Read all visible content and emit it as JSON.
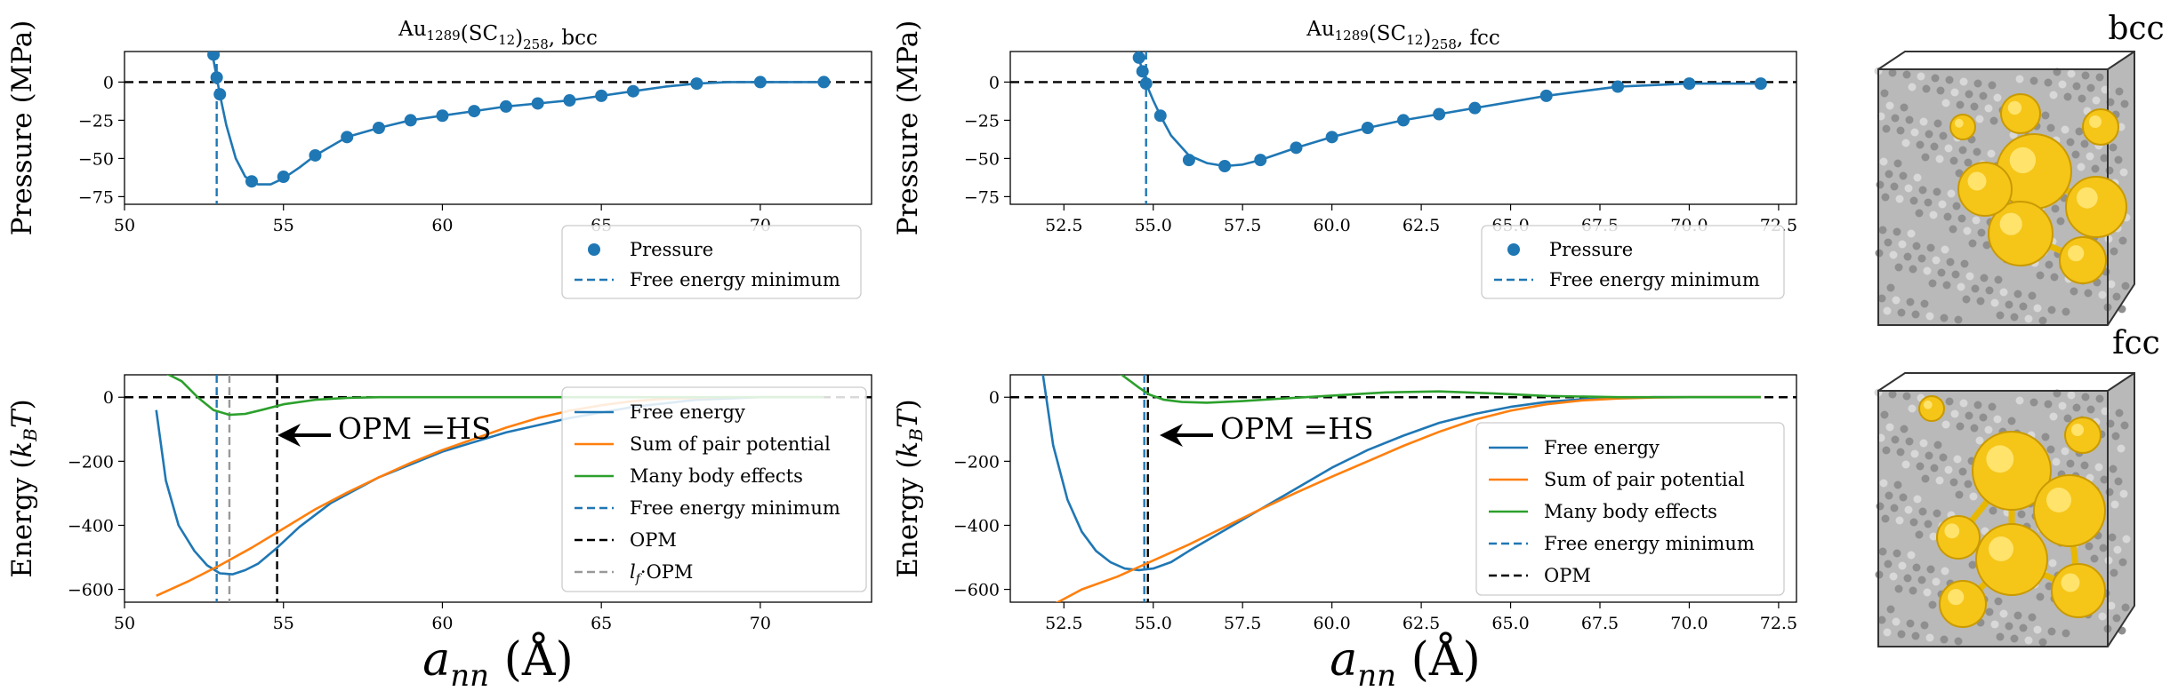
{
  "colors": {
    "blue": "#1f77b4",
    "orange": "#ff7f0e",
    "green": "#2ca02c",
    "black": "#000000",
    "gray": "#999999",
    "gold": "#f5c518"
  },
  "figure": {
    "xlabel": "a_nn (Å)",
    "xlabel_main": "a",
    "xlabel_sub": "nn",
    "xlabel_unit": "(Å)",
    "side_labels": [
      "bcc",
      "fcc"
    ]
  },
  "chart_data": [
    {
      "id": "bcc_pressure",
      "type": "scatter",
      "title": "Au1289(SC12)258, bcc",
      "title_base": "Au",
      "title_n1": "1289",
      "title_mid": "(SC",
      "title_n2": "12",
      "title_n3": "258",
      "title_end": ", bcc",
      "ylabel": "Pressure (MPa)",
      "xlim": [
        50,
        73.5
      ],
      "ylim": [
        -80,
        20
      ],
      "xticks": [
        50,
        55,
        60,
        65,
        70
      ],
      "yticks": [
        0,
        -25,
        -50,
        -75
      ],
      "hline": 0,
      "vline": {
        "x": 52.9,
        "label": "Free energy minimum"
      },
      "series": [
        {
          "name": "Pressure",
          "kind": "points",
          "x": [
            52.8,
            52.9,
            53.0,
            54.0,
            55.0,
            56.0,
            57.0,
            58.0,
            59.0,
            60.0,
            61.0,
            62.0,
            63.0,
            64.0,
            65.0,
            66.0,
            68.0,
            70.0,
            72.0
          ],
          "y": [
            18,
            3,
            -8,
            -65,
            -62,
            -48,
            -36,
            -30,
            -25,
            -22,
            -19,
            -16,
            -14,
            -12,
            -9,
            -6,
            -1,
            0,
            0
          ]
        },
        {
          "name": "fit",
          "kind": "line",
          "x": [
            52.75,
            52.9,
            53.0,
            53.2,
            53.5,
            53.8,
            54.2,
            54.6,
            55.0,
            55.5,
            56.0,
            57.0,
            58.0,
            59.0,
            60.0,
            61.0,
            62.0,
            63.0,
            64.0,
            65.0,
            66.0,
            67.0,
            68.0,
            69.0,
            70.0,
            71.0,
            72.0
          ],
          "y": [
            20,
            3,
            -8,
            -28,
            -50,
            -62,
            -67,
            -67,
            -63,
            -56,
            -48,
            -36,
            -30,
            -25,
            -22,
            -19,
            -16,
            -14,
            -12,
            -9,
            -6,
            -3,
            -1,
            0,
            0,
            0,
            0
          ]
        }
      ],
      "legend": {
        "location": "lower right",
        "entries": [
          "Pressure",
          "Free energy minimum"
        ]
      }
    },
    {
      "id": "fcc_pressure",
      "type": "scatter",
      "title": "Au1289(SC12)258, fcc",
      "title_base": "Au",
      "title_n1": "1289",
      "title_mid": "(SC",
      "title_n2": "12",
      "title_n3": "258",
      "title_end": ", fcc",
      "ylabel": "Pressure (MPa)",
      "xlim": [
        51.0,
        73.0
      ],
      "ylim": [
        -80,
        20
      ],
      "xticks": [
        52.5,
        55.0,
        57.5,
        60.0,
        62.5,
        65.0,
        67.5,
        70.0,
        72.5
      ],
      "yticks": [
        0,
        -25,
        -50,
        -75
      ],
      "hline": 0,
      "vline": {
        "x": 54.8,
        "label": "Free energy minimum"
      },
      "series": [
        {
          "name": "Pressure",
          "kind": "points",
          "x": [
            54.6,
            54.7,
            54.8,
            55.2,
            56.0,
            57.0,
            58.0,
            59.0,
            60.0,
            61.0,
            62.0,
            63.0,
            64.0,
            66.0,
            68.0,
            70.0,
            72.0
          ],
          "y": [
            16,
            7,
            -1,
            -22,
            -51,
            -55,
            -51,
            -43,
            -36,
            -30,
            -25,
            -21,
            -17,
            -9,
            -3,
            -1,
            -1
          ]
        },
        {
          "name": "fit",
          "kind": "line",
          "x": [
            54.55,
            54.7,
            54.8,
            55.0,
            55.2,
            55.5,
            56.0,
            56.5,
            57.0,
            57.5,
            58.0,
            59.0,
            60.0,
            61.0,
            62.0,
            63.0,
            64.0,
            65.0,
            66.0,
            67.0,
            68.0,
            69.0,
            70.0,
            71.0,
            72.0
          ],
          "y": [
            20,
            7,
            -1,
            -12,
            -22,
            -35,
            -48,
            -53,
            -55,
            -54,
            -51,
            -43,
            -36,
            -30,
            -25,
            -21,
            -17,
            -13,
            -9,
            -6,
            -3,
            -2,
            -1,
            -1,
            -1
          ]
        }
      ],
      "legend": {
        "location": "lower right",
        "entries": [
          "Pressure",
          "Free energy minimum"
        ]
      }
    },
    {
      "id": "bcc_energy",
      "type": "line",
      "ylabel": "Energy (k_B T)",
      "xlim": [
        50,
        73.5
      ],
      "ylim": [
        -640,
        70
      ],
      "xticks": [
        50,
        55,
        60,
        65,
        70
      ],
      "yticks": [
        0,
        -200,
        -400,
        -600
      ],
      "hline": 0,
      "vlines": [
        {
          "x": 52.9,
          "label": "Free energy minimum",
          "style": "blue-dashed"
        },
        {
          "x": 54.8,
          "label": "OPM",
          "style": "black-dashed"
        },
        {
          "x": 53.3,
          "label": "l_f·OPM",
          "style": "gray-dashed"
        }
      ],
      "annotation": "OPM =HS",
      "series": [
        {
          "name": "Free energy",
          "x": [
            51.0,
            51.3,
            51.7,
            52.2,
            52.6,
            53.0,
            53.4,
            53.8,
            54.2,
            54.8,
            55.5,
            56.5,
            58.0,
            60.0,
            62.0,
            64.0,
            66.0,
            68.0,
            70.0,
            72.0
          ],
          "y": [
            -40,
            -260,
            -400,
            -480,
            -525,
            -550,
            -553,
            -540,
            -520,
            -470,
            -405,
            -330,
            -250,
            -170,
            -110,
            -65,
            -30,
            -8,
            0,
            0
          ]
        },
        {
          "name": "Sum of pair potential",
          "x": [
            51.0,
            52.0,
            53.0,
            54.0,
            55.0,
            56.0,
            57.0,
            58.0,
            59.0,
            60.0,
            61.0,
            62.0,
            63.0,
            64.0,
            65.0,
            66.0,
            67.0,
            68.0,
            69.0,
            70.0,
            71.0,
            72.0
          ],
          "y": [
            -620,
            -575,
            -525,
            -470,
            -410,
            -350,
            -298,
            -250,
            -205,
            -165,
            -130,
            -95,
            -65,
            -42,
            -25,
            -12,
            -5,
            -2,
            0,
            0,
            0,
            0
          ]
        },
        {
          "name": "Many body effects",
          "x": [
            51.2,
            51.8,
            52.3,
            52.8,
            53.3,
            53.8,
            54.3,
            55.0,
            56.0,
            57.0,
            58.0,
            60.0,
            65.0,
            70.0,
            72.0
          ],
          "y": [
            80,
            50,
            0,
            -40,
            -55,
            -52,
            -40,
            -22,
            -8,
            -2,
            0,
            0,
            0,
            0,
            0
          ]
        }
      ],
      "legend": {
        "location": "right",
        "entries": [
          "Free energy",
          "Sum of pair potential",
          "Many body effects",
          "Free energy minimum",
          "OPM",
          "l_f·OPM"
        ]
      }
    },
    {
      "id": "fcc_energy",
      "type": "line",
      "ylabel": "Energy (k_B T)",
      "xlim": [
        51.0,
        73.0
      ],
      "ylim": [
        -640,
        70
      ],
      "xticks": [
        52.5,
        55.0,
        57.5,
        60.0,
        62.5,
        65.0,
        67.5,
        70.0,
        72.5
      ],
      "yticks": [
        0,
        -200,
        -400,
        -600
      ],
      "hline": 0,
      "vlines": [
        {
          "x": 54.75,
          "label": "Free energy minimum",
          "style": "blue-dashed"
        },
        {
          "x": 54.85,
          "label": "OPM",
          "style": "black-dashed"
        }
      ],
      "annotation": "OPM =HS",
      "series": [
        {
          "name": "Free energy",
          "x": [
            51.9,
            52.2,
            52.6,
            53.0,
            53.4,
            53.8,
            54.2,
            54.6,
            55.0,
            55.5,
            56.0,
            57.0,
            58.0,
            59.0,
            60.0,
            61.0,
            62.0,
            63.0,
            64.0,
            65.0,
            66.0,
            67.0,
            68.0,
            69.0,
            70.0,
            71.0,
            72.0
          ],
          "y": [
            80,
            -150,
            -320,
            -420,
            -480,
            -515,
            -535,
            -540,
            -535,
            -515,
            -480,
            -415,
            -350,
            -285,
            -220,
            -165,
            -120,
            -80,
            -52,
            -30,
            -15,
            -6,
            -2,
            0,
            0,
            0,
            0
          ]
        },
        {
          "name": "Sum of pair potential",
          "x": [
            52.0,
            53.0,
            54.0,
            55.0,
            56.0,
            57.0,
            58.0,
            59.0,
            60.0,
            61.0,
            62.0,
            63.0,
            64.0,
            65.0,
            66.0,
            67.0,
            68.0,
            69.0,
            70.0,
            71.0,
            72.0
          ],
          "y": [
            -660,
            -600,
            -560,
            -510,
            -460,
            -405,
            -350,
            -298,
            -248,
            -200,
            -152,
            -108,
            -70,
            -42,
            -22,
            -10,
            -4,
            -1,
            0,
            0,
            0
          ]
        },
        {
          "name": "Many body effects",
          "x": [
            54.0,
            54.3,
            54.6,
            54.9,
            55.3,
            55.8,
            56.5,
            57.5,
            58.5,
            60.0,
            61.5,
            63.0,
            64.5,
            66.0,
            68.0,
            70.0,
            72.0
          ],
          "y": [
            80,
            55,
            30,
            8,
            -8,
            -15,
            -17,
            -12,
            -5,
            5,
            15,
            18,
            12,
            4,
            0,
            0,
            0
          ]
        }
      ],
      "legend": {
        "location": "lower right",
        "entries": [
          "Free energy",
          "Sum of pair potential",
          "Many body effects",
          "Free energy minimum",
          "OPM"
        ]
      }
    }
  ]
}
